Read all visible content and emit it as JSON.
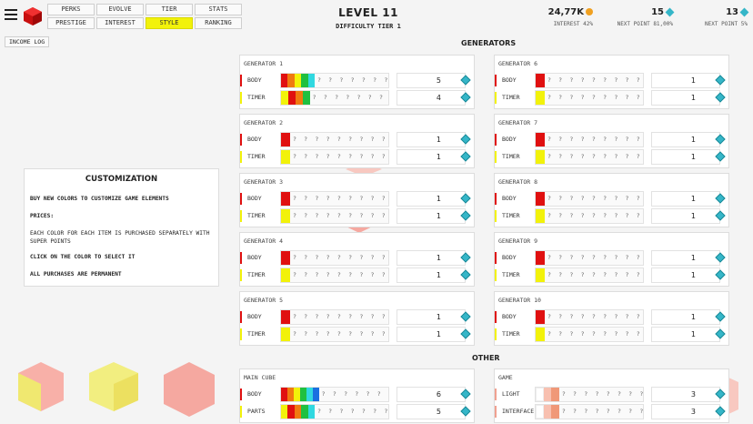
{
  "header": {
    "level": "LEVEL 11",
    "difficulty": "DIFFICULTY TIER 1",
    "nav_row1": [
      "PERKS",
      "EVOLVE",
      "TIER",
      "STATS"
    ],
    "nav_row2": [
      "PRESTIGE",
      "INTEREST",
      "STYLE",
      "RANKING"
    ],
    "active_tab": "STYLE",
    "income_log": "INCOME LOG"
  },
  "stats": {
    "money": "24,77K",
    "money_sub": "INTEREST 42%",
    "points_a": "15",
    "points_a_sub": "NEXT POINT 81,00%",
    "points_b": "13",
    "points_b_sub": "NEXT POINT 5%"
  },
  "sections": {
    "generators": "GENERATORS",
    "other": "OTHER"
  },
  "customization": {
    "title": "CUSTOMIZATION",
    "line1": "BUY NEW COLORS TO CUSTOMIZE GAME ELEMENTS",
    "line2": "PRICES:",
    "line3": "EACH COLOR FOR EACH ITEM IS PURCHASED SEPARATELY WITH SUPER POINTS",
    "line4": "CLICK ON THE COLOR TO SELECT IT",
    "line5": "ALL PURCHASES ARE PERMANENT"
  },
  "qmarks": "? ? ? ? ? ? ? ? ? ?",
  "generators": [
    {
      "name": "GENERATOR 1",
      "rows": [
        {
          "label": "BODY",
          "marker": "#e01010",
          "colors": [
            "#e01010",
            "#f07a10",
            "#f2f20a",
            "#20c040",
            "#30d8e0"
          ],
          "count": "5"
        },
        {
          "label": "TIMER",
          "marker": "#f2f20a",
          "colors": [
            "#f2f20a",
            "#e01010",
            "#f07a10",
            "#20c040"
          ],
          "count": "4"
        }
      ]
    },
    {
      "name": "GENERATOR 2",
      "rows": [
        {
          "label": "BODY",
          "marker": "#e01010",
          "colors": [
            "#e01010"
          ],
          "count": "1"
        },
        {
          "label": "TIMER",
          "marker": "#f2f20a",
          "colors": [
            "#f2f20a"
          ],
          "count": "1"
        }
      ]
    },
    {
      "name": "GENERATOR 3",
      "rows": [
        {
          "label": "BODY",
          "marker": "#e01010",
          "colors": [
            "#e01010"
          ],
          "count": "1"
        },
        {
          "label": "TIMER",
          "marker": "#f2f20a",
          "colors": [
            "#f2f20a"
          ],
          "count": "1"
        }
      ]
    },
    {
      "name": "GENERATOR 4",
      "rows": [
        {
          "label": "BODY",
          "marker": "#e01010",
          "colors": [
            "#e01010"
          ],
          "count": "1"
        },
        {
          "label": "TIMER",
          "marker": "#f2f20a",
          "colors": [
            "#f2f20a"
          ],
          "count": "1"
        }
      ]
    },
    {
      "name": "GENERATOR 5",
      "rows": [
        {
          "label": "BODY",
          "marker": "#e01010",
          "colors": [
            "#e01010"
          ],
          "count": "1"
        },
        {
          "label": "TIMER",
          "marker": "#f2f20a",
          "colors": [
            "#f2f20a"
          ],
          "count": "1"
        }
      ]
    },
    {
      "name": "GENERATOR 6",
      "rows": [
        {
          "label": "BODY",
          "marker": "#e01010",
          "colors": [
            "#e01010"
          ],
          "count": "1"
        },
        {
          "label": "TIMER",
          "marker": "#f2f20a",
          "colors": [
            "#f2f20a"
          ],
          "count": "1"
        }
      ]
    },
    {
      "name": "GENERATOR 7",
      "rows": [
        {
          "label": "BODY",
          "marker": "#e01010",
          "colors": [
            "#e01010"
          ],
          "count": "1"
        },
        {
          "label": "TIMER",
          "marker": "#f2f20a",
          "colors": [
            "#f2f20a"
          ],
          "count": "1"
        }
      ]
    },
    {
      "name": "GENERATOR 8",
      "rows": [
        {
          "label": "BODY",
          "marker": "#e01010",
          "colors": [
            "#e01010"
          ],
          "count": "1"
        },
        {
          "label": "TIMER",
          "marker": "#f2f20a",
          "colors": [
            "#f2f20a"
          ],
          "count": "1"
        }
      ]
    },
    {
      "name": "GENERATOR 9",
      "rows": [
        {
          "label": "BODY",
          "marker": "#e01010",
          "colors": [
            "#e01010"
          ],
          "count": "1"
        },
        {
          "label": "TIMER",
          "marker": "#f2f20a",
          "colors": [
            "#f2f20a"
          ],
          "count": "1"
        }
      ]
    },
    {
      "name": "GENERATOR 10",
      "rows": [
        {
          "label": "BODY",
          "marker": "#e01010",
          "colors": [
            "#e01010"
          ],
          "count": "1"
        },
        {
          "label": "TIMER",
          "marker": "#f2f20a",
          "colors": [
            "#f2f20a"
          ],
          "count": "1"
        }
      ]
    }
  ],
  "other": [
    {
      "name": "MAIN CUBE",
      "rows": [
        {
          "label": "BODY",
          "marker": "#e01010",
          "colors": [
            "#e01010",
            "#f07a10",
            "#f2f20a",
            "#20c040",
            "#30d8e0",
            "#1a70e0"
          ],
          "count": "6"
        },
        {
          "label": "PARTS",
          "marker": "#f2f20a",
          "colors": [
            "#f2f20a",
            "#e01010",
            "#f07a10",
            "#20c040",
            "#30d8e0"
          ],
          "count": "5"
        }
      ]
    },
    {
      "name": "GAME",
      "rows": [
        {
          "label": "LIGHT",
          "marker": "#ffffff",
          "colors": [
            "#ffffff",
            "#f8c0b0",
            "#f09878"
          ],
          "count": "3"
        },
        {
          "label": "INTERFACE",
          "marker": "#ffffff",
          "colors": [
            "#ffffff",
            "#f8c0b0",
            "#f09878"
          ],
          "count": "3"
        }
      ]
    }
  ]
}
